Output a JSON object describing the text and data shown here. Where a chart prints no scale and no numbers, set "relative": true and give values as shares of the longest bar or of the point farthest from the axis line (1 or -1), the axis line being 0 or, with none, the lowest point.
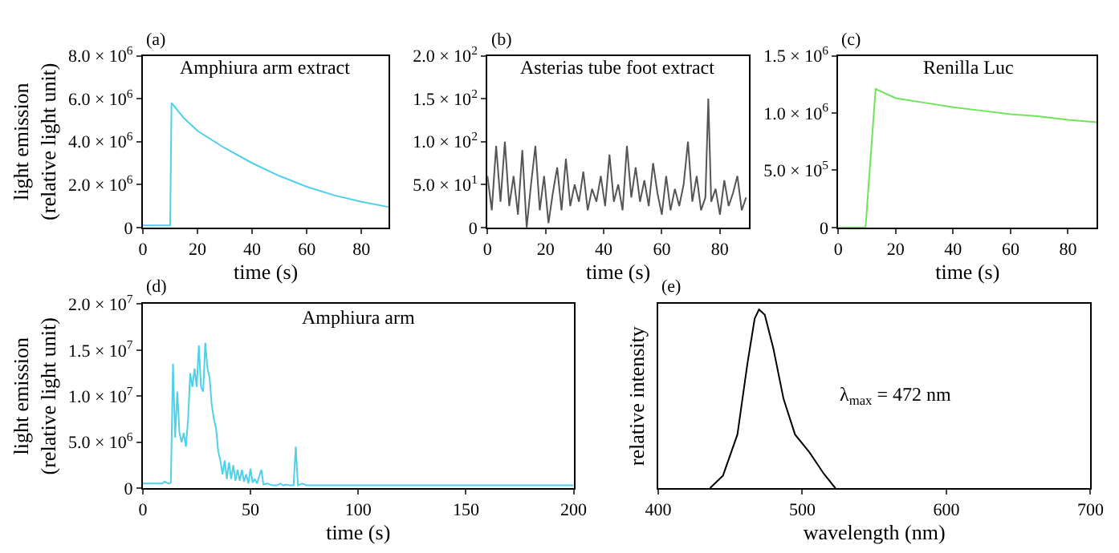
{
  "chart_data": [
    {
      "type": "line",
      "title": "(a)",
      "annotations": [
        "Amphiura arm extract"
      ],
      "xlabel": "time (s)",
      "ylabel": "light emission\n(relative light unit)",
      "x": [
        0,
        10,
        10.5,
        15,
        20,
        30,
        40,
        50,
        60,
        70,
        80,
        90
      ],
      "series": [
        {
          "color": "#4fd0ea",
          "values": [
            100000,
            100000,
            5800000,
            5100000,
            4500000,
            3700000,
            3000000,
            2400000,
            1900000,
            1500000,
            1200000,
            950000
          ]
        }
      ],
      "xlim": [
        0,
        90
      ],
      "xticks": [
        0,
        20,
        40,
        60,
        80
      ],
      "ylim": [
        0,
        8000000
      ],
      "yticks": [
        0,
        {
          "value": 2000000,
          "label": "2.0 × 10$^{6}$"
        },
        {
          "value": 4000000,
          "label": "4.0 × 10$^{6}$"
        },
        {
          "value": 6000000,
          "label": "6.0 × 10$^{6}$"
        },
        {
          "value": 8000000,
          "label": "8.0 × 10$^{6}$"
        }
      ]
    },
    {
      "type": "line",
      "title": "(b)",
      "annotations": [
        "Asterias tube foot extract"
      ],
      "xlabel": "time (s)",
      "x": [
        0,
        1.5,
        3,
        4.5,
        6,
        7.5,
        9,
        10.5,
        12,
        13.5,
        15,
        16.5,
        18,
        19.5,
        21,
        22.5,
        24,
        25.5,
        27,
        28.5,
        30,
        31.5,
        33,
        34.5,
        36,
        37.5,
        39,
        40.5,
        42,
        43.5,
        45,
        46.5,
        48,
        49.5,
        51,
        52.5,
        54,
        55.5,
        57,
        58.5,
        60,
        61.5,
        63,
        64.5,
        66,
        67.5,
        69,
        70.5,
        72,
        73.5,
        75,
        76,
        77,
        78.5,
        80,
        81.5,
        83,
        84.5,
        86,
        87.5,
        89
      ],
      "series": [
        {
          "color": "#555555",
          "values": [
            60,
            20,
            95,
            30,
            100,
            25,
            60,
            15,
            90,
            0,
            50,
            95,
            20,
            60,
            5,
            40,
            70,
            20,
            80,
            25,
            50,
            30,
            65,
            20,
            45,
            30,
            60,
            25,
            85,
            30,
            50,
            20,
            95,
            35,
            70,
            30,
            55,
            25,
            75,
            40,
            15,
            60,
            20,
            45,
            25,
            50,
            100,
            30,
            60,
            20,
            35,
            150,
            30,
            45,
            15,
            55,
            25,
            40,
            60,
            20,
            35
          ]
        }
      ],
      "xlim": [
        0,
        90
      ],
      "xticks": [
        0,
        20,
        40,
        60,
        80
      ],
      "ylim": [
        0,
        200
      ],
      "yticks": [
        0,
        {
          "value": 50,
          "label": "5.0 × 10$^{1}$"
        },
        {
          "value": 100,
          "label": "1.0 × 10$^{2}$"
        },
        {
          "value": 150,
          "label": "1.5 × 10$^{2}$"
        },
        {
          "value": 200,
          "label": "2.0 × 10$^{2}$"
        }
      ]
    },
    {
      "type": "line",
      "title": "(c)",
      "annotations": [
        "Renilla Luc"
      ],
      "xlabel": "time (s)",
      "x": [
        0,
        9.5,
        13,
        20,
        30,
        40,
        50,
        60,
        70,
        80,
        90
      ],
      "series": [
        {
          "color": "#6fe35a",
          "values": [
            0,
            0,
            1210000,
            1130000,
            1090000,
            1050000,
            1020000,
            990000,
            970000,
            940000,
            920000
          ]
        }
      ],
      "xlim": [
        0,
        90
      ],
      "xticks": [
        0,
        20,
        40,
        60,
        80
      ],
      "ylim": [
        0,
        1500000
      ],
      "yticks": [
        0,
        {
          "value": 500000,
          "label": "5.0 × 10$^{5}$"
        },
        {
          "value": 1000000,
          "label": "1.0 × 10$^{6}$"
        },
        {
          "value": 1500000,
          "label": "1.5 × 10$^{6}$"
        }
      ]
    },
    {
      "type": "line",
      "title": "(d)",
      "annotations": [
        "Amphiura arm"
      ],
      "xlabel": "time (s)",
      "ylabel": "light emission\n(relative light unit)",
      "x": [
        0,
        9,
        10,
        12,
        13,
        14,
        15,
        16,
        17,
        18,
        19,
        20,
        21,
        22,
        23,
        24,
        25,
        26,
        27,
        28,
        29,
        30,
        31,
        32,
        33,
        34,
        35,
        36,
        37,
        38,
        39,
        40,
        41,
        42,
        43,
        44,
        45,
        46,
        47,
        48,
        49,
        50,
        51,
        52,
        53,
        55,
        56,
        58,
        60,
        62,
        64,
        65,
        67,
        68,
        70,
        71,
        72,
        74,
        76,
        80,
        200
      ],
      "series": [
        {
          "color": "#4fd0ea",
          "values": [
            500000,
            500000,
            700000,
            500000,
            600000,
            13500000,
            5500000,
            10500000,
            6000000,
            5000000,
            6000000,
            4500000,
            7500000,
            12500000,
            11000000,
            13000000,
            11000000,
            15500000,
            11000000,
            10500000,
            15800000,
            13000000,
            12000000,
            9000000,
            7500000,
            6500000,
            4000000,
            3000000,
            1500000,
            3000000,
            1000000,
            2800000,
            1000000,
            2500000,
            800000,
            2000000,
            800000,
            2000000,
            700000,
            1500000,
            500000,
            2100000,
            600000,
            1000000,
            500000,
            2000000,
            400000,
            500000,
            300000,
            300000,
            500000,
            300000,
            400000,
            300000,
            300000,
            4500000,
            300000,
            500000,
            300000,
            300000,
            300000
          ]
        }
      ],
      "xlim": [
        0,
        200
      ],
      "xticks": [
        0,
        50,
        100,
        150,
        200
      ],
      "ylim": [
        0,
        20000000
      ],
      "yticks": [
        0,
        {
          "value": 5000000,
          "label": "5.0 × 10$^{6}$"
        },
        {
          "value": 10000000,
          "label": "1.0 × 10$^{7}$"
        },
        {
          "value": 15000000,
          "label": "1.5 × 10$^{7}$"
        },
        {
          "value": 20000000,
          "label": "2.0 × 10$^{7}$"
        }
      ]
    },
    {
      "type": "line",
      "title": "(e)",
      "annotations": [
        "λ$_{max}$ = 472 nm"
      ],
      "xlabel": "wavelength (nm)",
      "ylabel": "relative intensity",
      "relative": true,
      "x": [
        436,
        445,
        455,
        462,
        467,
        470,
        474,
        480,
        487,
        495,
        505,
        515,
        523
      ],
      "series": [
        {
          "color": "#000000",
          "values": [
            0,
            0.07,
            0.3,
            0.7,
            0.95,
            1,
            0.97,
            0.78,
            0.5,
            0.3,
            0.2,
            0.08,
            0
          ]
        }
      ],
      "xlim": [
        400,
        700
      ],
      "xticks": [
        400,
        500,
        600,
        700
      ]
    }
  ]
}
